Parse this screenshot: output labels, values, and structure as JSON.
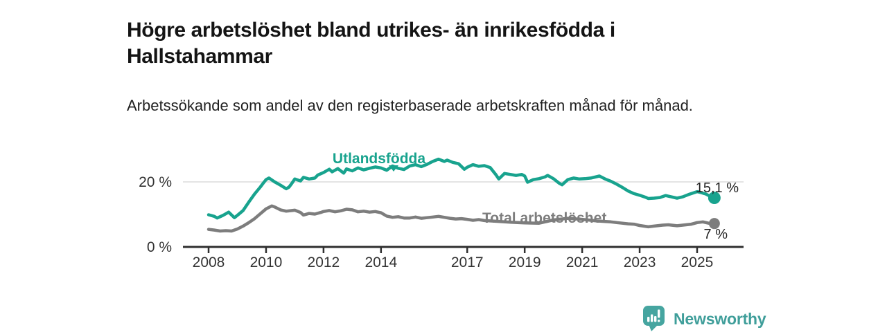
{
  "header": {
    "title": "Högre arbetslöshet bland utrikes- än inrikesfödda i Hallstahammar",
    "subtitle": "Arbetssökande som andel av den registerbaserade arbetskraften månad för månad."
  },
  "chart_data": {
    "type": "line",
    "title": "Högre arbetslöshet bland utrikes- än inrikesfödda i Hallstahammar",
    "subtitle": "Arbetssökande som andel av den registerbaserade arbetskraften månad för månad.",
    "xlabel": "",
    "ylabel": "",
    "x_axis": {
      "ticks": [
        2008,
        2010,
        2012,
        2014,
        2017,
        2019,
        2021,
        2023,
        2025
      ],
      "range": [
        2007.1,
        2026.6
      ]
    },
    "y_axis": {
      "ticks": [
        {
          "value": 0,
          "label": "0 %"
        },
        {
          "value": 20,
          "label": "20 %"
        }
      ],
      "range": [
        0,
        29
      ],
      "grid_on_nonzero_ticks": true
    },
    "legend": "inline-labels",
    "colors": {
      "utlandsfodda": "#18A38E",
      "total": "#7D7D7D",
      "axis": "#2F2F2F",
      "grid": "#DCDCDC",
      "value_label": "#222222"
    },
    "series": [
      {
        "name": "Utlandsfödda",
        "color": "#18A38E",
        "end_label": "15,1 %",
        "points": [
          [
            2008.0,
            9.9
          ],
          [
            2008.2,
            9.4
          ],
          [
            2008.3,
            8.9
          ],
          [
            2008.5,
            9.7
          ],
          [
            2008.7,
            10.7
          ],
          [
            2008.9,
            9.0
          ],
          [
            2009.0,
            9.7
          ],
          [
            2009.2,
            11.2
          ],
          [
            2009.4,
            13.8
          ],
          [
            2009.6,
            16.3
          ],
          [
            2009.8,
            18.4
          ],
          [
            2009.9,
            19.6
          ],
          [
            2010.0,
            20.7
          ],
          [
            2010.1,
            21.2
          ],
          [
            2010.3,
            20.0
          ],
          [
            2010.5,
            19.0
          ],
          [
            2010.7,
            17.9
          ],
          [
            2010.8,
            18.4
          ],
          [
            2010.9,
            19.6
          ],
          [
            2011.0,
            20.9
          ],
          [
            2011.2,
            20.3
          ],
          [
            2011.3,
            21.4
          ],
          [
            2011.5,
            20.9
          ],
          [
            2011.7,
            21.2
          ],
          [
            2011.8,
            22.1
          ],
          [
            2012.0,
            22.9
          ],
          [
            2012.2,
            23.9
          ],
          [
            2012.3,
            23.1
          ],
          [
            2012.5,
            24.1
          ],
          [
            2012.7,
            22.7
          ],
          [
            2012.8,
            24.0
          ],
          [
            2013.0,
            23.4
          ],
          [
            2013.2,
            24.3
          ],
          [
            2013.4,
            23.7
          ],
          [
            2013.6,
            24.2
          ],
          [
            2013.8,
            24.6
          ],
          [
            2014.0,
            24.3
          ],
          [
            2014.2,
            23.6
          ],
          [
            2014.4,
            24.9
          ],
          [
            2014.6,
            24.2
          ],
          [
            2014.8,
            23.8
          ],
          [
            2015.0,
            24.9
          ],
          [
            2015.2,
            25.3
          ],
          [
            2015.4,
            24.7
          ],
          [
            2015.6,
            25.4
          ],
          [
            2015.8,
            26.3
          ],
          [
            2016.0,
            27.0
          ],
          [
            2016.2,
            26.3
          ],
          [
            2016.3,
            26.7
          ],
          [
            2016.5,
            26.0
          ],
          [
            2016.7,
            25.6
          ],
          [
            2016.9,
            23.9
          ],
          [
            2017.0,
            24.5
          ],
          [
            2017.2,
            25.3
          ],
          [
            2017.4,
            24.8
          ],
          [
            2017.6,
            25.0
          ],
          [
            2017.8,
            24.4
          ],
          [
            2018.0,
            22.2
          ],
          [
            2018.1,
            20.9
          ],
          [
            2018.3,
            22.6
          ],
          [
            2018.5,
            22.3
          ],
          [
            2018.7,
            22.0
          ],
          [
            2018.9,
            22.3
          ],
          [
            2019.0,
            21.8
          ],
          [
            2019.1,
            19.9
          ],
          [
            2019.3,
            20.7
          ],
          [
            2019.5,
            21.0
          ],
          [
            2019.7,
            21.5
          ],
          [
            2019.8,
            22.0
          ],
          [
            2020.0,
            21.0
          ],
          [
            2020.2,
            19.6
          ],
          [
            2020.3,
            19.1
          ],
          [
            2020.5,
            20.7
          ],
          [
            2020.7,
            21.2
          ],
          [
            2020.9,
            20.9
          ],
          [
            2021.1,
            21.0
          ],
          [
            2021.3,
            21.2
          ],
          [
            2021.5,
            21.6
          ],
          [
            2021.6,
            21.8
          ],
          [
            2021.8,
            20.9
          ],
          [
            2022.0,
            20.2
          ],
          [
            2022.2,
            19.3
          ],
          [
            2022.4,
            18.3
          ],
          [
            2022.6,
            17.2
          ],
          [
            2022.8,
            16.4
          ],
          [
            2023.0,
            15.9
          ],
          [
            2023.2,
            15.3
          ],
          [
            2023.3,
            14.9
          ],
          [
            2023.5,
            15.0
          ],
          [
            2023.7,
            15.2
          ],
          [
            2023.9,
            15.8
          ],
          [
            2024.1,
            15.4
          ],
          [
            2024.3,
            15.0
          ],
          [
            2024.5,
            15.4
          ],
          [
            2024.7,
            16.1
          ],
          [
            2024.9,
            16.7
          ],
          [
            2025.0,
            17.0
          ],
          [
            2025.1,
            16.8
          ],
          [
            2025.3,
            16.3
          ],
          [
            2025.4,
            15.8
          ],
          [
            2025.6,
            15.1
          ]
        ]
      },
      {
        "name": "Total arbetslöshet",
        "color": "#7D7D7D",
        "end_label": "7 %",
        "points": [
          [
            2008.0,
            5.4
          ],
          [
            2008.2,
            5.2
          ],
          [
            2008.4,
            4.9
          ],
          [
            2008.6,
            5.0
          ],
          [
            2008.8,
            4.9
          ],
          [
            2009.0,
            5.5
          ],
          [
            2009.2,
            6.4
          ],
          [
            2009.4,
            7.5
          ],
          [
            2009.6,
            8.7
          ],
          [
            2009.8,
            10.2
          ],
          [
            2010.0,
            11.7
          ],
          [
            2010.2,
            12.6
          ],
          [
            2010.3,
            12.3
          ],
          [
            2010.5,
            11.4
          ],
          [
            2010.7,
            11.0
          ],
          [
            2010.9,
            11.2
          ],
          [
            2011.0,
            11.3
          ],
          [
            2011.2,
            10.6
          ],
          [
            2011.3,
            9.8
          ],
          [
            2011.5,
            10.3
          ],
          [
            2011.7,
            10.1
          ],
          [
            2011.9,
            10.6
          ],
          [
            2012.0,
            10.9
          ],
          [
            2012.2,
            11.2
          ],
          [
            2012.4,
            10.8
          ],
          [
            2012.6,
            11.1
          ],
          [
            2012.8,
            11.6
          ],
          [
            2013.0,
            11.4
          ],
          [
            2013.2,
            10.8
          ],
          [
            2013.4,
            11.0
          ],
          [
            2013.6,
            10.7
          ],
          [
            2013.8,
            10.9
          ],
          [
            2014.0,
            10.5
          ],
          [
            2014.2,
            9.5
          ],
          [
            2014.4,
            9.1
          ],
          [
            2014.6,
            9.3
          ],
          [
            2014.8,
            8.9
          ],
          [
            2015.0,
            8.9
          ],
          [
            2015.2,
            9.2
          ],
          [
            2015.4,
            8.8
          ],
          [
            2015.6,
            9.0
          ],
          [
            2015.8,
            9.2
          ],
          [
            2016.0,
            9.4
          ],
          [
            2016.2,
            9.1
          ],
          [
            2016.4,
            8.8
          ],
          [
            2016.6,
            8.6
          ],
          [
            2016.8,
            8.7
          ],
          [
            2017.0,
            8.5
          ],
          [
            2017.2,
            8.2
          ],
          [
            2017.4,
            8.4
          ],
          [
            2017.6,
            8.1
          ],
          [
            2017.8,
            8.0
          ],
          [
            2018.0,
            7.9
          ],
          [
            2018.5,
            7.6
          ],
          [
            2019.0,
            7.4
          ],
          [
            2019.5,
            7.3
          ],
          [
            2020.0,
            8.3
          ],
          [
            2020.5,
            8.8
          ],
          [
            2021.0,
            8.5
          ],
          [
            2021.5,
            8.0
          ],
          [
            2022.0,
            7.7
          ],
          [
            2022.2,
            7.5
          ],
          [
            2022.4,
            7.3
          ],
          [
            2022.6,
            7.1
          ],
          [
            2022.8,
            7.0
          ],
          [
            2023.0,
            6.6
          ],
          [
            2023.3,
            6.2
          ],
          [
            2023.5,
            6.4
          ],
          [
            2023.8,
            6.7
          ],
          [
            2024.0,
            6.8
          ],
          [
            2024.3,
            6.5
          ],
          [
            2024.5,
            6.7
          ],
          [
            2024.8,
            7.0
          ],
          [
            2025.0,
            7.5
          ],
          [
            2025.2,
            7.7
          ],
          [
            2025.4,
            7.3
          ],
          [
            2025.6,
            7.2
          ]
        ]
      }
    ]
  },
  "footer": {
    "brand": "Newsworthy",
    "brand_color": "#3F9E9A",
    "logo_icon": "bar-chart-speech-bubble-icon"
  }
}
